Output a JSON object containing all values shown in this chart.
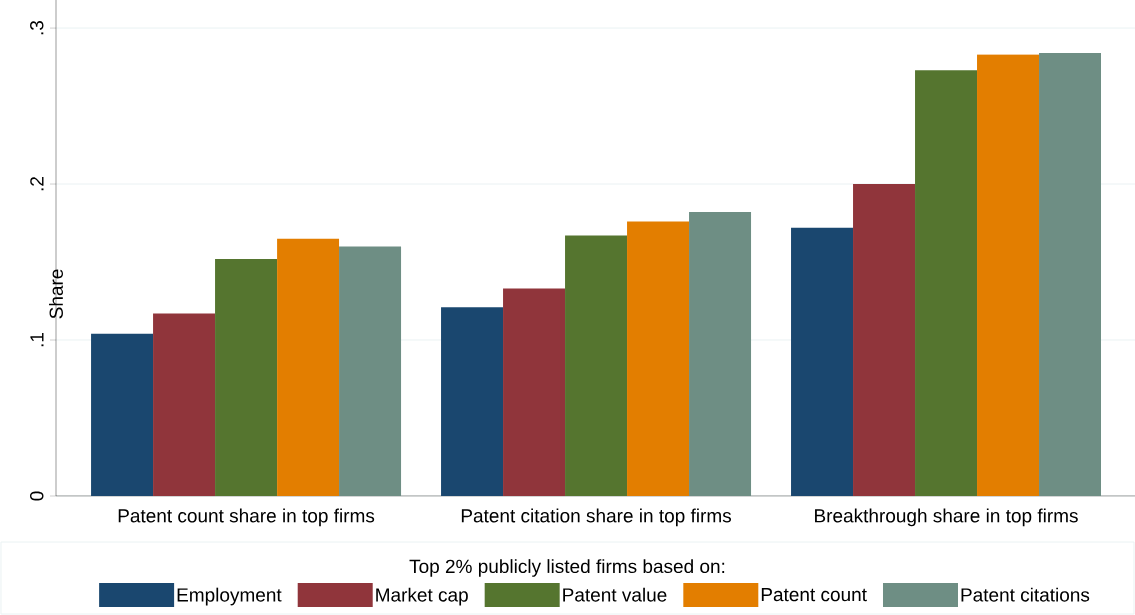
{
  "chart_data": {
    "type": "bar",
    "categories": [
      "Patent count share in top firms",
      "Patent citation share in top firms",
      "Breakthrough share in top firms"
    ],
    "series": [
      {
        "name": "Employment",
        "color": "#1a476f",
        "values": [
          0.104,
          0.121,
          0.172
        ]
      },
      {
        "name": "Market cap",
        "color": "#90353b",
        "values": [
          0.117,
          0.133,
          0.2
        ]
      },
      {
        "name": "Patent value",
        "color": "#55752f",
        "values": [
          0.152,
          0.167,
          0.273
        ]
      },
      {
        "name": "Patent count",
        "color": "#e37e00",
        "values": [
          0.165,
          0.176,
          0.283
        ]
      },
      {
        "name": "Patent citations",
        "color": "#6e8e84",
        "values": [
          0.16,
          0.182,
          0.284
        ]
      }
    ],
    "ylabel": "Share",
    "ylim": [
      0,
      0.318
    ],
    "yticks": [
      {
        "value": 0,
        "label": "0"
      },
      {
        "value": 0.1,
        "label": ".1"
      },
      {
        "value": 0.2,
        "label": ".2"
      },
      {
        "value": 0.3,
        "label": ".3"
      }
    ],
    "grid": "y",
    "legend": "bottom",
    "legend_title": "Top 2% publicly listed firms based on:"
  }
}
